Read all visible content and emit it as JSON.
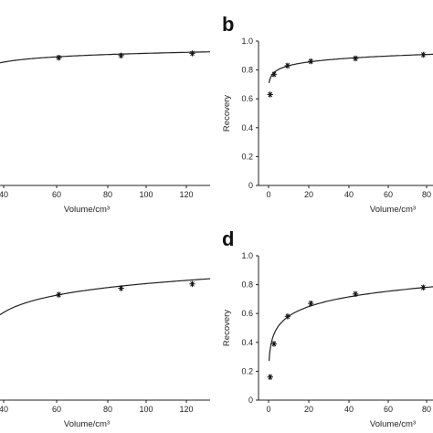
{
  "chart_data": [
    {
      "type": "line",
      "panel": "",
      "xlabel": "Volume/cm³",
      "ylabel": "",
      "xlim": [
        0,
        130
      ],
      "ylim": [
        0,
        1.0
      ],
      "xticks": [
        "40",
        "60",
        "80",
        "100",
        "120"
      ],
      "yticks": [],
      "points": [
        {
          "x": 45,
          "y": 0.885
        },
        {
          "x": 80,
          "y": 0.9
        },
        {
          "x": 120,
          "y": 0.915
        }
      ],
      "curve": {
        "a": 0.77,
        "b": 0.032
      }
    },
    {
      "type": "line",
      "panel": "b",
      "xlabel": "Volume/cm³",
      "ylabel": "Recovery",
      "xlim": [
        -5,
        800
      ],
      "ylim": [
        0,
        1.0
      ],
      "xticks": [
        "0",
        "20",
        "40",
        "60",
        "80"
      ],
      "yticks": [
        "0",
        "0.2",
        "0.4",
        "0.6",
        "0.8",
        "1.0"
      ],
      "points": [
        {
          "x": 1,
          "y": 0.63
        },
        {
          "x": 3,
          "y": 0.77
        },
        {
          "x": 10,
          "y": 0.83
        },
        {
          "x": 22,
          "y": 0.86
        },
        {
          "x": 45,
          "y": 0.88
        },
        {
          "x": 80,
          "y": 0.905
        }
      ],
      "curve": {
        "a": 0.74,
        "b": 0.038
      }
    },
    {
      "type": "line",
      "panel": "",
      "xlabel": "Volume/cm³",
      "ylabel": "",
      "xlim": [
        0,
        130
      ],
      "ylim": [
        0,
        1.0
      ],
      "xticks": [
        "40",
        "60",
        "80",
        "100",
        "120"
      ],
      "yticks": [],
      "points": [
        {
          "x": 45,
          "y": 0.73
        },
        {
          "x": 80,
          "y": 0.775
        },
        {
          "x": 120,
          "y": 0.805
        }
      ],
      "curve": {
        "a": 0.33,
        "b": 0.105
      }
    },
    {
      "type": "line",
      "panel": "d",
      "xlabel": "Volume/cm³",
      "ylabel": "Recovery",
      "xlim": [
        -5,
        800
      ],
      "ylim": [
        0,
        1.0
      ],
      "xticks": [
        "0",
        "20",
        "40",
        "60",
        "80"
      ],
      "yticks": [
        "0",
        "0.2",
        "0.4",
        "0.6",
        "0.8",
        "1.0"
      ],
      "points": [
        {
          "x": 1,
          "y": 0.16
        },
        {
          "x": 3,
          "y": 0.39
        },
        {
          "x": 10,
          "y": 0.58
        },
        {
          "x": 22,
          "y": 0.67
        },
        {
          "x": 45,
          "y": 0.735
        },
        {
          "x": 80,
          "y": 0.78
        }
      ],
      "curve": {
        "a": 0.35,
        "b": 0.098
      }
    }
  ]
}
